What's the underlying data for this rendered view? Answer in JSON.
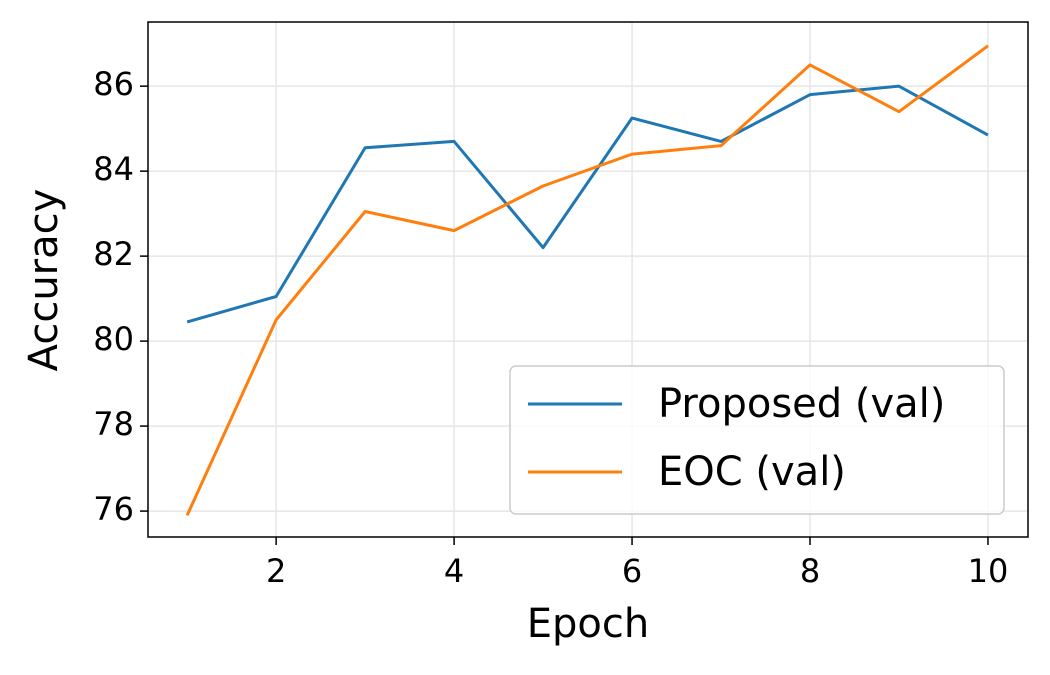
{
  "chart_data": {
    "type": "line",
    "x_label": "Epoch",
    "y_label": "Accuracy",
    "x": [
      1,
      2,
      3,
      4,
      5,
      6,
      7,
      8,
      9,
      10
    ],
    "series": [
      {
        "name": "Proposed (val)",
        "color": "#1f77b4",
        "values": [
          80.45,
          81.05,
          84.55,
          84.7,
          82.2,
          85.25,
          84.7,
          85.8,
          86.0,
          84.85
        ]
      },
      {
        "name": "EOC (val)",
        "color": "#ff7f0e",
        "values": [
          75.9,
          80.5,
          83.05,
          82.6,
          83.65,
          84.4,
          84.6,
          86.5,
          85.4,
          86.95
        ]
      }
    ],
    "xlim": [
      0.56,
      10.45
    ],
    "ylim": [
      75.39,
      87.51
    ],
    "xticks": [
      2,
      4,
      6,
      8,
      10
    ],
    "yticks": [
      76,
      78,
      80,
      82,
      84,
      86
    ],
    "grid": true,
    "legend": "lower right"
  }
}
